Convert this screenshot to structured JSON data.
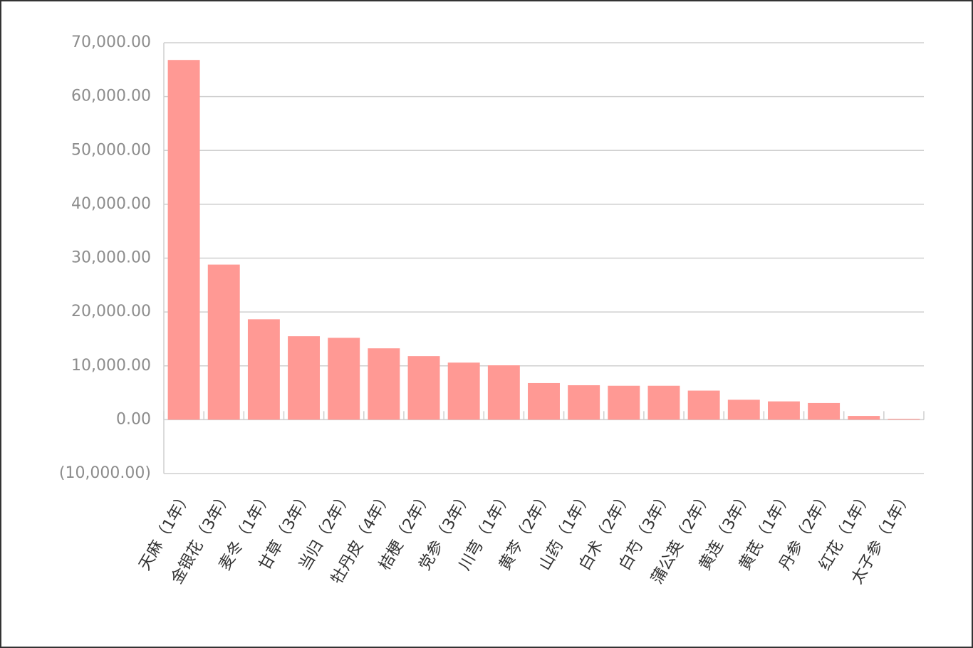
{
  "chart_data": {
    "type": "bar",
    "categories": [
      "天麻（1年）",
      "金银花（3年）",
      "麦冬（1年）",
      "甘草（3年）",
      "当归（2年）",
      "牡丹皮（4年）",
      "桔梗（2年）",
      "党参（3年）",
      "川芎（1年）",
      "黄芩（2年）",
      "山药（1年）",
      "白术（2年）",
      "白芍（3年）",
      "蒲公英（2年）",
      "黄连（3年）",
      "黄芪（1年）",
      "丹参（2年）",
      "红花（1年）",
      "太子参（1年）"
    ],
    "values": [
      66800,
      28800,
      18650,
      15500,
      15200,
      13250,
      11800,
      10600,
      10100,
      6800,
      6400,
      6300,
      6300,
      5400,
      3700,
      3400,
      3100,
      700,
      150
    ],
    "color": "#ff9994",
    "ylim": [
      -10000,
      70000
    ],
    "yticks": [
      {
        "value": -10000,
        "label": "(10,000.00)"
      },
      {
        "value": 0,
        "label": "0.00"
      },
      {
        "value": 10000,
        "label": "10,000.00"
      },
      {
        "value": 20000,
        "label": "20,000.00"
      },
      {
        "value": 30000,
        "label": "30,000.00"
      },
      {
        "value": 40000,
        "label": "40,000.00"
      },
      {
        "value": 50000,
        "label": "50,000.00"
      },
      {
        "value": 60000,
        "label": "60,000.00"
      },
      {
        "value": 70000,
        "label": "70,000.00"
      }
    ],
    "grid": true
  }
}
